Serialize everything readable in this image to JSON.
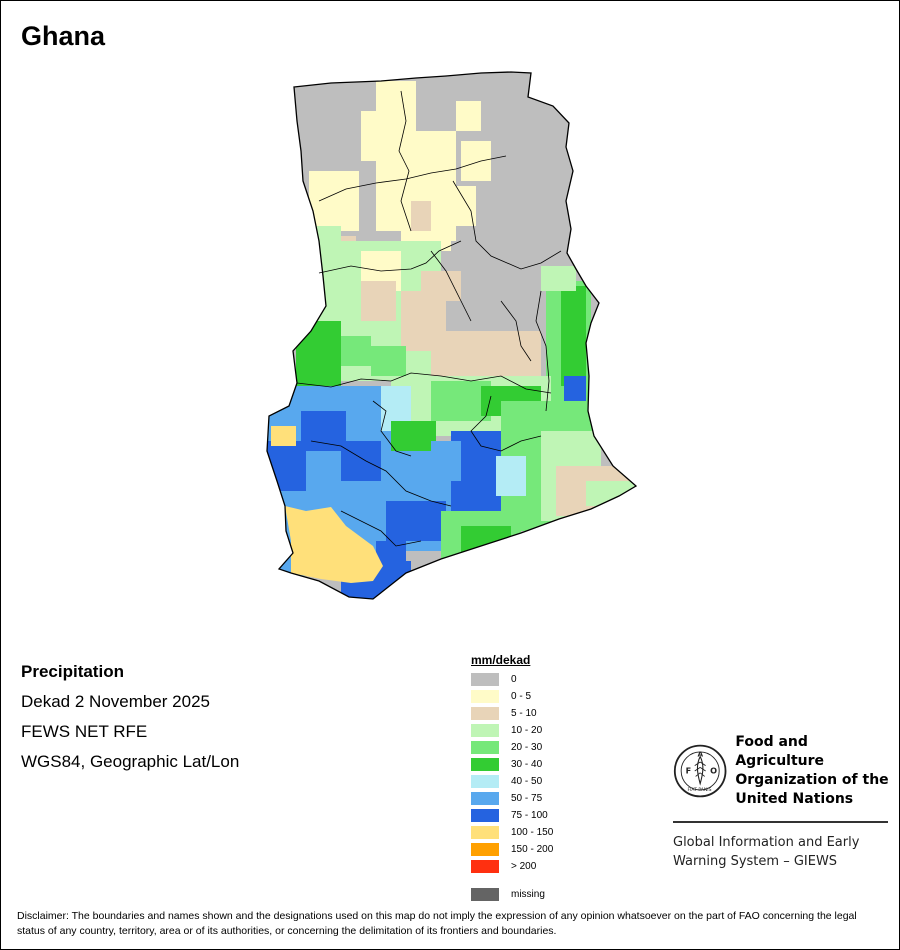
{
  "map": {
    "title": "Ghana"
  },
  "info": {
    "variable": "Precipitation",
    "period": "Dekad 2 November 2025",
    "source": "FEWS NET RFE",
    "projection": "WGS84, Geographic Lat/Lon"
  },
  "legend": {
    "title": "mm/dekad",
    "items": [
      {
        "label": "0",
        "color": "#bebebe"
      },
      {
        "label": "0 - 5",
        "color": "#fffbc8"
      },
      {
        "label": "5 - 10",
        "color": "#e8d4b8"
      },
      {
        "label": "10 - 20",
        "color": "#bff5b5"
      },
      {
        "label": "20 - 30",
        "color": "#76e87a"
      },
      {
        "label": "30 - 40",
        "color": "#33cc33"
      },
      {
        "label": "40 - 50",
        "color": "#b4ecf5"
      },
      {
        "label": "50 - 75",
        "color": "#58a8ee"
      },
      {
        "label": "75 - 100",
        "color": "#2563e0"
      },
      {
        "label": "100 - 150",
        "color": "#ffe07a"
      },
      {
        "label": "150 - 200",
        "color": "#ffa000"
      },
      {
        "label": "> 200",
        "color": "#ff3010"
      }
    ],
    "missing": {
      "label": "missing",
      "color": "#646464"
    }
  },
  "org": {
    "name_lines": [
      "Food and Agriculture",
      "Organization of the",
      "United Nations"
    ],
    "logo_letters": "FAO",
    "logo_motto": "FIAT PANIS",
    "system_lines": [
      "Global Information and Early",
      "Warning System – GIEWS"
    ]
  },
  "disclaimer": "Disclaimer: The boundaries and names shown and the designations used on this map do not imply the expression of any opinion whatsoever on the part of FAO concerning the legal status of any country, territory, area or of its authorities, or concerning the delimitation of its frontiers and boundaries."
}
